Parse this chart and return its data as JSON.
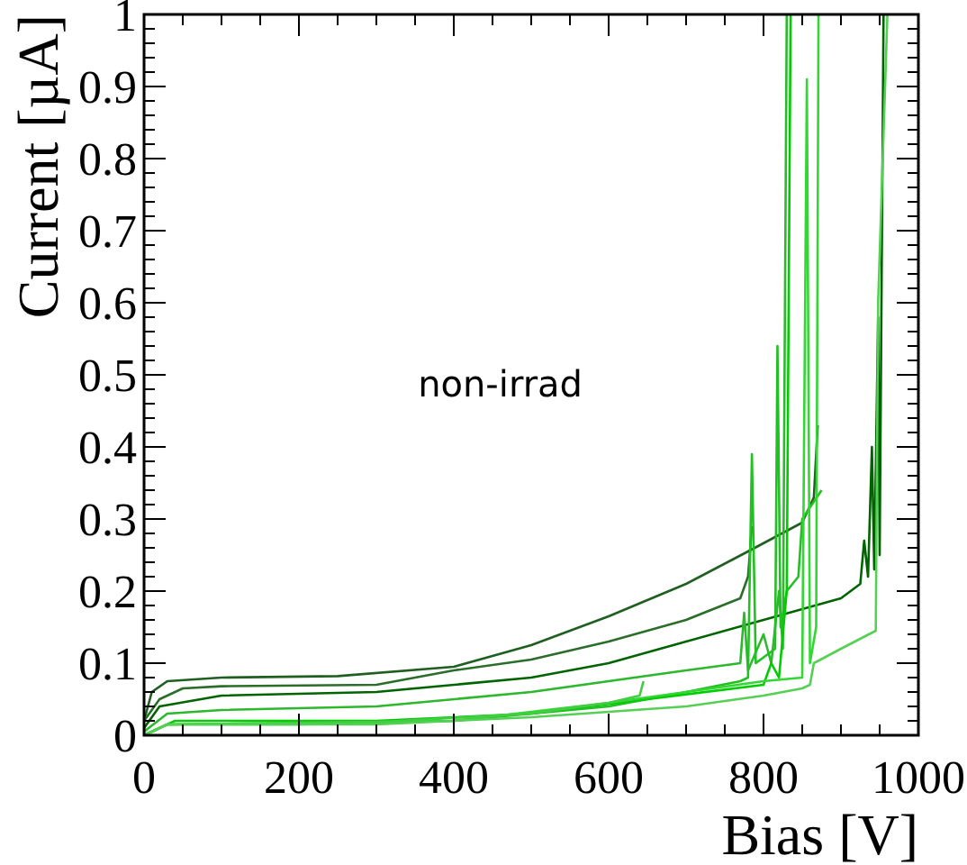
{
  "chart_data": {
    "type": "line",
    "xlabel": "Bias [V]",
    "ylabel": "Current [µA]",
    "annotations": [
      "non-irrad"
    ],
    "xlim": [
      0,
      1000
    ],
    "ylim": [
      0,
      1
    ],
    "xticks": [
      0,
      {
        "value": 50,
        "label": null
      },
      {
        "value": 100,
        "label": null
      },
      {
        "value": 150,
        "label": null
      },
      200,
      {
        "value": 250,
        "label": null
      },
      {
        "value": 300,
        "label": null
      },
      {
        "value": 350,
        "label": null
      },
      400,
      {
        "value": 450,
        "label": null
      },
      {
        "value": 500,
        "label": null
      },
      {
        "value": 550,
        "label": null
      },
      600,
      {
        "value": 650,
        "label": null
      },
      {
        "value": 700,
        "label": null
      },
      {
        "value": 750,
        "label": null
      },
      800,
      {
        "value": 850,
        "label": null
      },
      {
        "value": 900,
        "label": null
      },
      {
        "value": 950,
        "label": null
      },
      1000
    ],
    "yticks": [
      0,
      {
        "value": 0.02,
        "label": null
      },
      {
        "value": 0.04,
        "label": null
      },
      {
        "value": 0.06,
        "label": null
      },
      {
        "value": 0.08,
        "label": null
      },
      0.1,
      {
        "value": 0.12,
        "label": null
      },
      {
        "value": 0.14,
        "label": null
      },
      {
        "value": 0.16,
        "label": null
      },
      {
        "value": 0.18,
        "label": null
      },
      0.2,
      {
        "value": 0.22,
        "label": null
      },
      {
        "value": 0.24,
        "label": null
      },
      {
        "value": 0.26,
        "label": null
      },
      {
        "value": 0.28,
        "label": null
      },
      0.3,
      {
        "value": 0.32,
        "label": null
      },
      {
        "value": 0.34,
        "label": null
      },
      {
        "value": 0.36,
        "label": null
      },
      {
        "value": 0.38,
        "label": null
      },
      0.4,
      {
        "value": 0.42,
        "label": null
      },
      {
        "value": 0.44,
        "label": null
      },
      {
        "value": 0.46,
        "label": null
      },
      {
        "value": 0.48,
        "label": null
      },
      0.5,
      {
        "value": 0.52,
        "label": null
      },
      {
        "value": 0.54,
        "label": null
      },
      {
        "value": 0.56,
        "label": null
      },
      {
        "value": 0.58,
        "label": null
      },
      0.6,
      {
        "value": 0.62,
        "label": null
      },
      {
        "value": 0.64,
        "label": null
      },
      {
        "value": 0.66,
        "label": null
      },
      {
        "value": 0.68,
        "label": null
      },
      0.7,
      {
        "value": 0.72,
        "label": null
      },
      {
        "value": 0.74,
        "label": null
      },
      {
        "value": 0.76,
        "label": null
      },
      {
        "value": 0.78,
        "label": null
      },
      0.8,
      {
        "value": 0.82,
        "label": null
      },
      {
        "value": 0.84,
        "label": null
      },
      {
        "value": 0.86,
        "label": null
      },
      {
        "value": 0.88,
        "label": null
      },
      0.9,
      {
        "value": 0.92,
        "label": null
      },
      {
        "value": 0.94,
        "label": null
      },
      {
        "value": 0.96,
        "label": null
      },
      {
        "value": 0.98,
        "label": null
      },
      1
    ],
    "grid": false,
    "marker": "none",
    "line_style": "solid",
    "series": [
      {
        "color": "#1f5f1f",
        "x": [
          0,
          10,
          30,
          100,
          250,
          400,
          500,
          600,
          700,
          780,
          850,
          865,
          870
        ],
        "values": [
          0.02,
          0.06,
          0.075,
          0.08,
          0.082,
          0.095,
          0.125,
          0.165,
          0.21,
          0.255,
          0.295,
          0.33,
          0.43
        ]
      },
      {
        "color": "#2a6e2a",
        "x": [
          0,
          20,
          50,
          100,
          300,
          400,
          500,
          600,
          700,
          770,
          780,
          785
        ],
        "values": [
          0.02,
          0.05,
          0.065,
          0.068,
          0.07,
          0.09,
          0.105,
          0.13,
          0.16,
          0.19,
          0.22,
          0.29
        ]
      },
      {
        "color": "#006400",
        "x": [
          0,
          20,
          100,
          300,
          500,
          600,
          700,
          800,
          900,
          925,
          930,
          935,
          940,
          943,
          948,
          950,
          955
        ],
        "values": [
          0.01,
          0.04,
          0.055,
          0.06,
          0.08,
          0.1,
          0.13,
          0.16,
          0.19,
          0.21,
          0.27,
          0.22,
          0.4,
          0.23,
          0.58,
          0.25,
          1
        ]
      },
      {
        "color": "#2eb82e",
        "x": [
          0,
          30,
          100,
          300,
          500,
          700,
          770,
          775,
          780,
          800,
          810,
          820,
          825,
          830
        ],
        "values": [
          0.005,
          0.03,
          0.035,
          0.04,
          0.06,
          0.09,
          0.1,
          0.17,
          0.09,
          0.14,
          0.1,
          0.2,
          0.12,
          1
        ]
      },
      {
        "color": "#22c022",
        "x": [
          0,
          30,
          200,
          400,
          600,
          700,
          770,
          780,
          785,
          790,
          815,
          818,
          822,
          830,
          845,
          850,
          875
        ],
        "values": [
          0,
          0.015,
          0.015,
          0.02,
          0.04,
          0.06,
          0.075,
          0.08,
          0.39,
          0.1,
          0.12,
          0.54,
          0.15,
          0.2,
          0.22,
          0.3,
          0.34
        ]
      },
      {
        "color": "#00cc00",
        "x": [
          0,
          40,
          300,
          500,
          650,
          800,
          810,
          820,
          830,
          835
        ],
        "values": [
          0,
          0.02,
          0.02,
          0.03,
          0.05,
          0.07,
          0.1,
          0.08,
          0.2,
          1
        ]
      },
      {
        "color": "#33d633",
        "x": [
          0,
          30,
          400,
          600,
          700,
          800,
          850,
          856,
          860,
          868,
          871
        ],
        "values": [
          0,
          0.015,
          0.02,
          0.045,
          0.06,
          0.075,
          0.08,
          0.91,
          0.1,
          0.15,
          1
        ]
      },
      {
        "color": "#44cc44",
        "x": [
          0,
          30,
          300,
          500,
          600,
          640,
          645
        ],
        "values": [
          0,
          0.015,
          0.018,
          0.03,
          0.045,
          0.055,
          0.075
        ]
      },
      {
        "color": "#55d055",
        "x": [
          0,
          30,
          300,
          500,
          700,
          800,
          850,
          860,
          865,
          900,
          945,
          948,
          960
        ],
        "values": [
          0,
          0.015,
          0.015,
          0.025,
          0.04,
          0.055,
          0.065,
          0.07,
          0.1,
          0.12,
          0.145,
          0.6,
          1
        ]
      }
    ]
  }
}
